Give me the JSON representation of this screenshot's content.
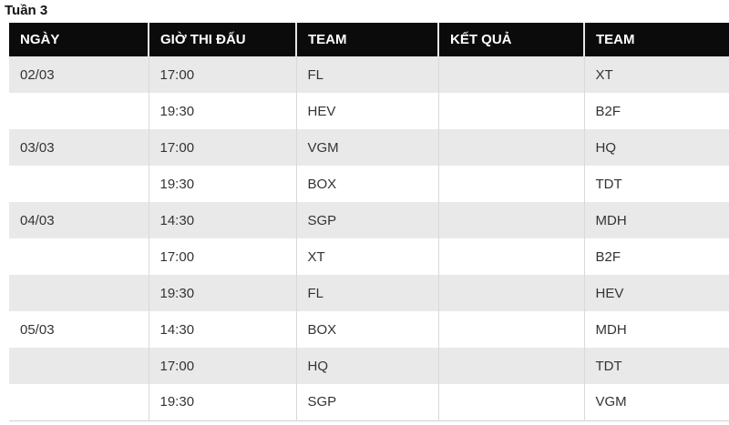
{
  "page_title": "Tuần 3",
  "table": {
    "headers": [
      "NGÀY",
      "GIỜ THI ĐẤU",
      "TEAM",
      "KẾT QUẢ",
      "TEAM"
    ],
    "rows": [
      {
        "date": "02/03",
        "time": "17:00",
        "team1": "FL",
        "result": "",
        "team2": "XT"
      },
      {
        "date": "",
        "time": "19:30",
        "team1": "HEV",
        "result": "",
        "team2": "B2F"
      },
      {
        "date": "03/03",
        "time": "17:00",
        "team1": "VGM",
        "result": "",
        "team2": "HQ"
      },
      {
        "date": "",
        "time": "19:30",
        "team1": "BOX",
        "result": "",
        "team2": "TDT"
      },
      {
        "date": "04/03",
        "time": "14:30",
        "team1": "SGP",
        "result": "",
        "team2": "MDH"
      },
      {
        "date": "",
        "time": "17:00",
        "team1": "XT",
        "result": "",
        "team2": "B2F"
      },
      {
        "date": "",
        "time": "19:30",
        "team1": "FL",
        "result": "",
        "team2": "HEV"
      },
      {
        "date": "05/03",
        "time": "14:30",
        "team1": "BOX",
        "result": "",
        "team2": "MDH"
      },
      {
        "date": "",
        "time": "17:00",
        "team1": "HQ",
        "result": "",
        "team2": "TDT"
      },
      {
        "date": "",
        "time": "19:30",
        "team1": "SGP",
        "result": "",
        "team2": "VGM"
      }
    ]
  },
  "colors": {
    "header_bg": "#0b0b0b",
    "header_text": "#ffffff",
    "row_alt_bg": "#e9e9e9",
    "row_bg": "#ffffff",
    "body_text": "#333333",
    "border": "#d9d9d9",
    "title_text": "#111111"
  }
}
